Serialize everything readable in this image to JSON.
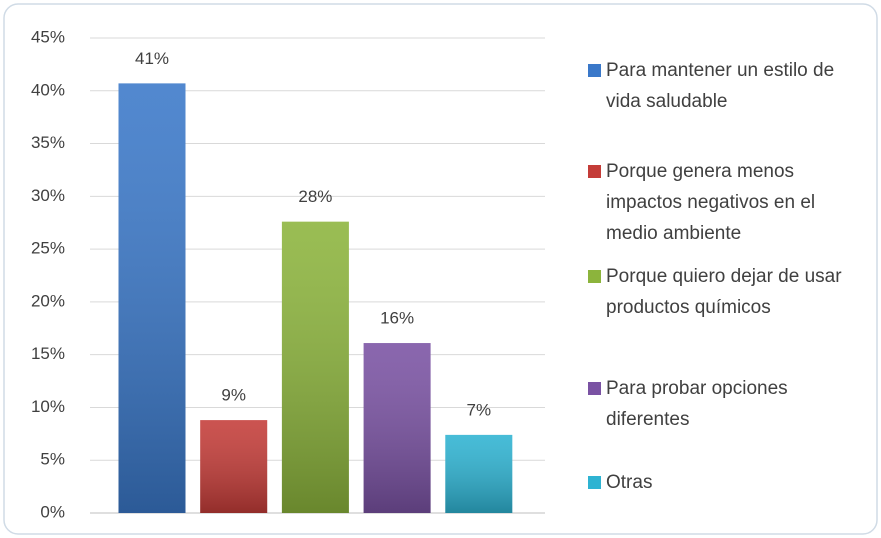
{
  "chart_data": {
    "type": "bar",
    "series": [
      {
        "name": "Para mantener un estilo de vida saludable",
        "color": "#3a78c9",
        "values": [
          40.7
        ],
        "value_labels": [
          "41%"
        ]
      },
      {
        "name": "Porque genera menos impactos negativos en el medio ambiente",
        "color": "#c43c38",
        "values": [
          8.8
        ],
        "value_labels": [
          "9%"
        ]
      },
      {
        "name": "Porque quiero dejar de usar productos químicos",
        "color": "#8cb43c",
        "values": [
          27.6
        ],
        "value_labels": [
          "28%"
        ]
      },
      {
        "name": "Para probar opciones diferentes",
        "color": "#7a52a3",
        "values": [
          16.1
        ],
        "value_labels": [
          "16%"
        ]
      },
      {
        "name": "Otras",
        "color": "#2eb3d2",
        "values": [
          7.4
        ],
        "value_labels": [
          "7%"
        ]
      }
    ],
    "ylim": [
      0,
      45
    ],
    "yticks": [
      {
        "value": 0,
        "label": "0%"
      },
      {
        "value": 5,
        "label": "5%"
      },
      {
        "value": 10,
        "label": "10%"
      },
      {
        "value": 15,
        "label": "15%"
      },
      {
        "value": 20,
        "label": "20%"
      },
      {
        "value": 25,
        "label": "25%"
      },
      {
        "value": 30,
        "label": "30%"
      },
      {
        "value": 35,
        "label": "35%"
      },
      {
        "value": 40,
        "label": "40%"
      },
      {
        "value": 45,
        "label": "45%"
      }
    ],
    "grid": true,
    "legend": "right"
  }
}
